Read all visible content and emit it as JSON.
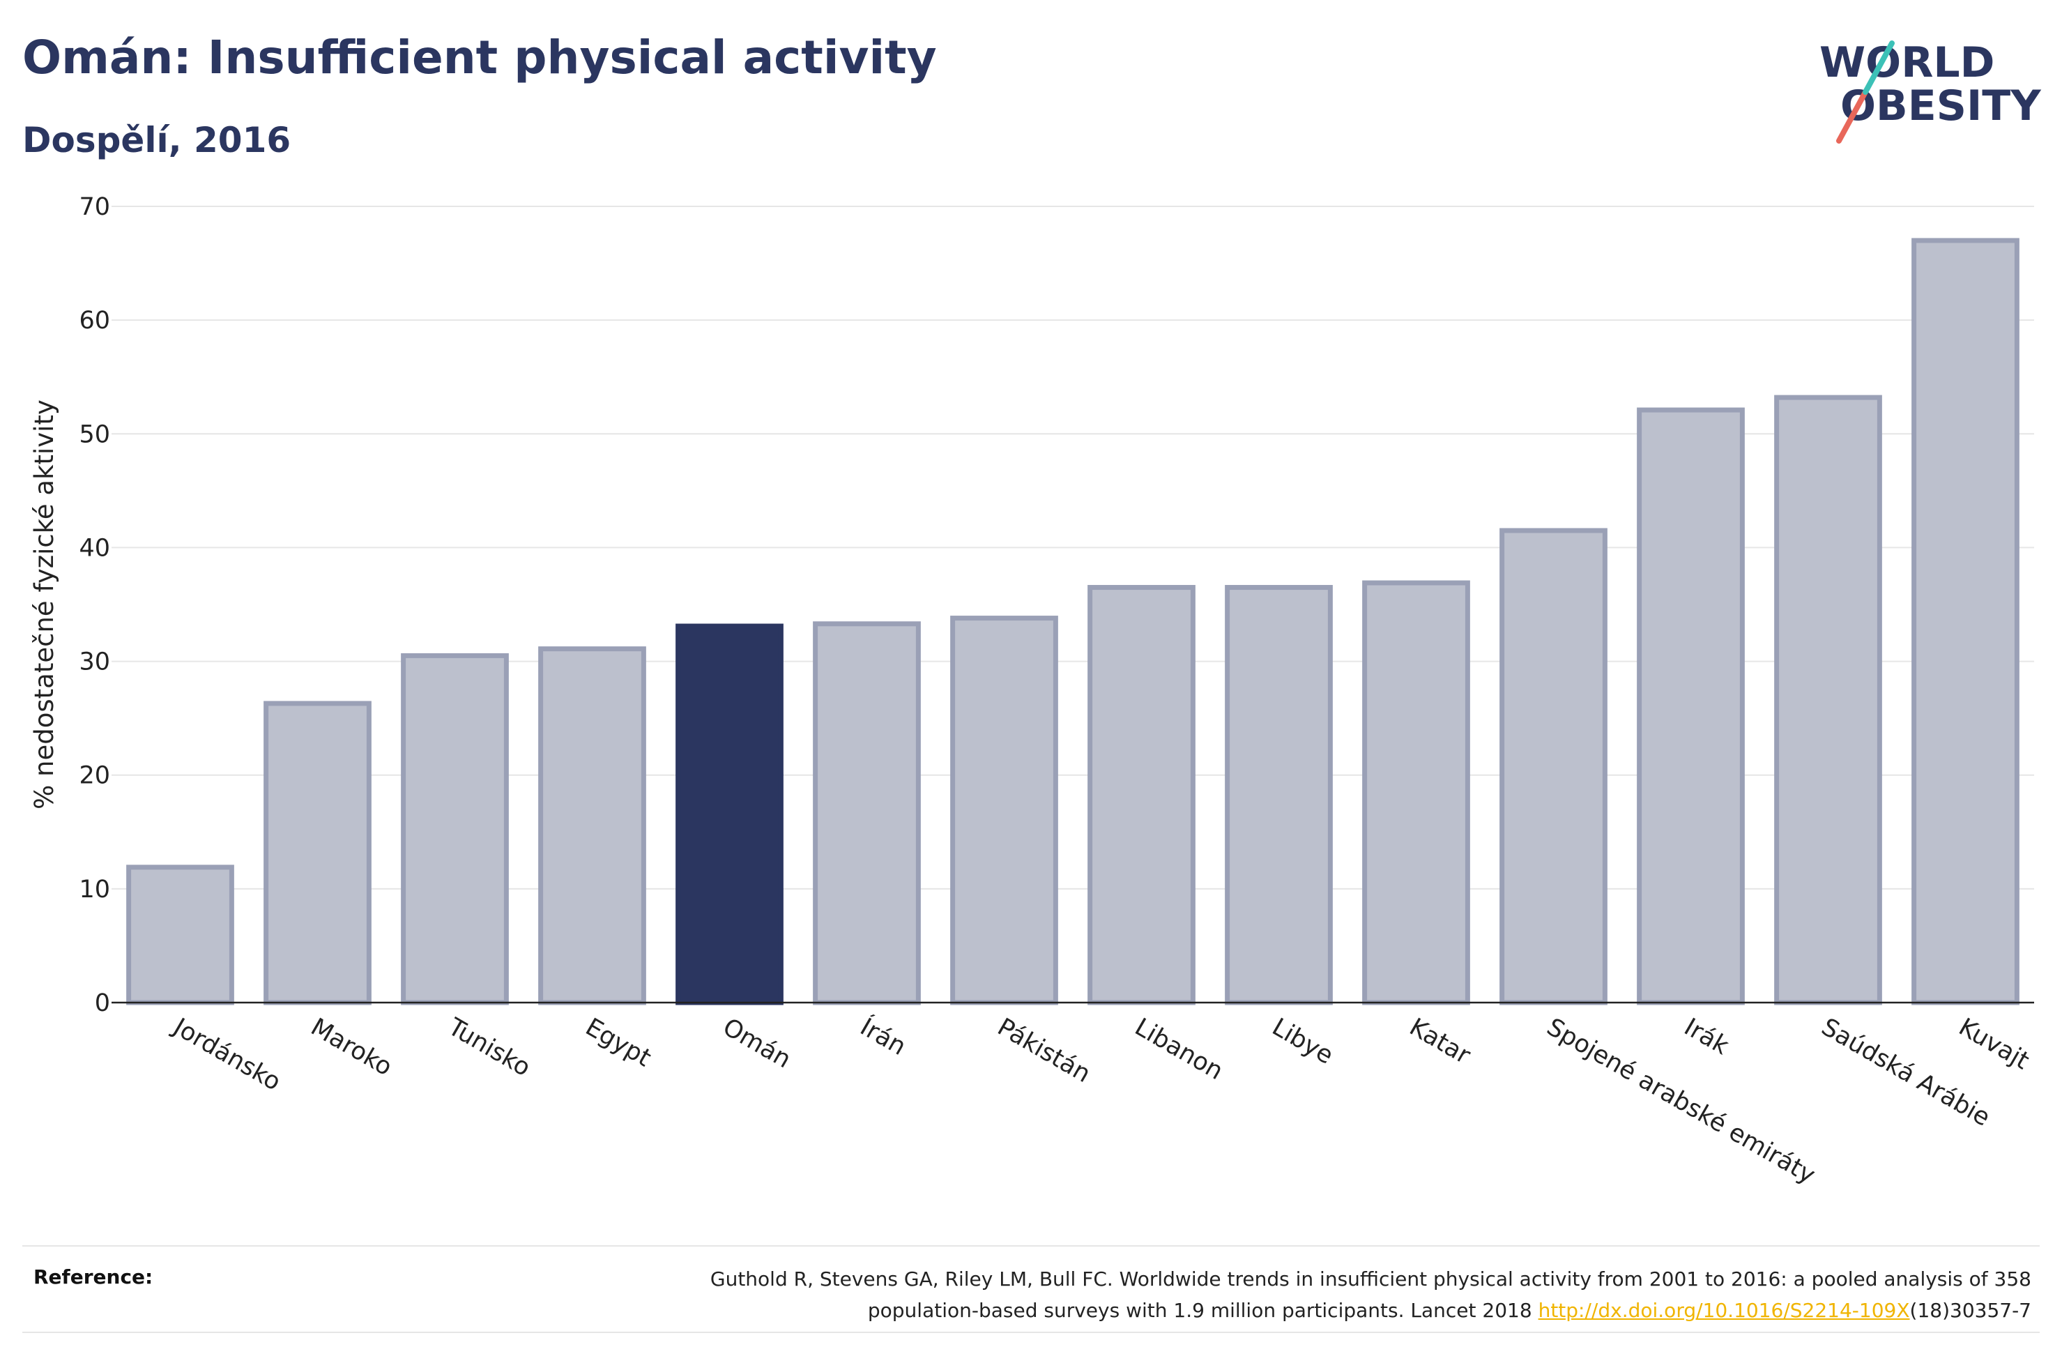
{
  "header": {
    "title": "Omán: Insufficient physical activity",
    "subtitle": "Dospělí, 2016"
  },
  "logo": {
    "line1": "WORLD",
    "line2": "OBESITY",
    "text_color": "#2b3660",
    "slash_colors": [
      "#e8675a",
      "#3cc1b7"
    ]
  },
  "colors": {
    "highlight": "#2b3660",
    "bar_fill": "#bcc0cd",
    "bar_stroke": "#9aa0b6",
    "grid": "#e6e6e6"
  },
  "chart_data": {
    "type": "bar",
    "title": "Omán: Insufficient physical activity",
    "subtitle": "Dospělí, 2016",
    "ylabel": "% nedostatečné fyzické aktivity",
    "ylim": [
      0,
      70
    ],
    "yticks": [
      0,
      10,
      20,
      30,
      40,
      50,
      60,
      70
    ],
    "grid": true,
    "categories": [
      "Jordánsko",
      "Maroko",
      "Tunisko",
      "Egypt",
      "Omán",
      "Írán",
      "Pákistán",
      "Libanon",
      "Libye",
      "Katar",
      "Spojené arabské emiráty",
      "Irák",
      "Saúdská Arábie",
      "Kuvajt"
    ],
    "values": [
      11.9,
      26.3,
      30.5,
      31.1,
      33.1,
      33.3,
      33.8,
      36.5,
      36.5,
      36.9,
      41.5,
      52.1,
      53.2,
      67.0
    ],
    "highlight": "Omán"
  },
  "reference": {
    "label": "Reference:",
    "text_line1": "Guthold R, Stevens GA, Riley LM, Bull FC. Worldwide trends in insufficient physical activity from 2001 to 2016: a pooled analysis of 358",
    "text_line2_before": "population-based surveys with 1.9 million participants. Lancet 2018 ",
    "link": "http://dx.doi.org/10.1016/S2214-109X",
    "text_line2_after": "(18)30357-7"
  }
}
